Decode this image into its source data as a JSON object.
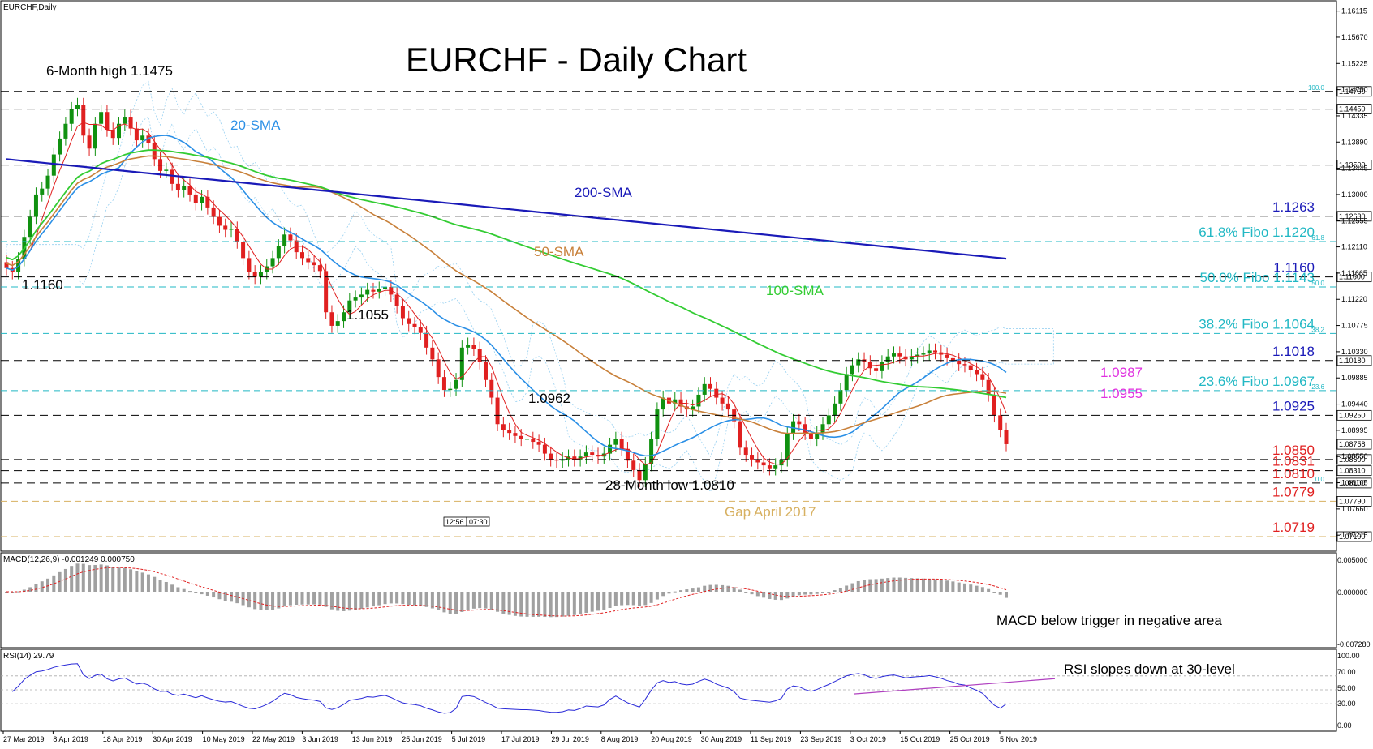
{
  "window": {
    "caption": "EURCHF,Daily"
  },
  "title": "EURCHF - Daily Chart",
  "time_badges": [
    "12:56",
    "07:30"
  ],
  "colors": {
    "up": "#109110",
    "down": "#e02020",
    "sma20": "#2a8fe6",
    "sma50": "#c8803a",
    "sma100": "#33cc33",
    "sma200": "#1a1ab8",
    "fibo": "#22b8c4",
    "gap": "#d7b060",
    "magenta": "#e030e0",
    "red_label": "#e02020",
    "blue_label": "#1a1ab8"
  },
  "chart_data": [
    {
      "type": "line",
      "name": "price",
      "dates": [
        "27 Mar 2019",
        "8 Apr 2019",
        "18 Apr 2019",
        "30 Apr 2019",
        "10 May 2019",
        "22 May 2019",
        "3 Jun 2019",
        "13 Jun 2019",
        "25 Jun 2019",
        "5 Jul 2019",
        "17 Jul 2019",
        "29 Jul 2019",
        "8 Aug 2019",
        "20 Aug 2019",
        "30 Aug 2019",
        "11 Sep 2019",
        "23 Sep 2019",
        "3 Oct 2019",
        "15 Oct 2019",
        "25 Oct 2019",
        "5 Nov 2019"
      ],
      "yticks": [
        "1.16115",
        "1.15670",
        "1.15225",
        "1.14780",
        "1.14335",
        "1.13890",
        "1.13445",
        "1.13000",
        "1.12555",
        "1.12110",
        "1.11665",
        "1.11220",
        "1.10775",
        "1.10330",
        "1.09885",
        "1.09440",
        "1.08995",
        "1.08550",
        "1.08105",
        "1.07660",
        "1.07215"
      ],
      "ylim": [
        1.0697,
        1.1622
      ],
      "closes": [
        1.1175,
        1.1168,
        1.119,
        1.1228,
        1.1262,
        1.13,
        1.131,
        1.1332,
        1.1368,
        1.1395,
        1.142,
        1.1445,
        1.1452,
        1.14,
        1.1378,
        1.142,
        1.144,
        1.141,
        1.1396,
        1.142,
        1.1432,
        1.1412,
        1.1392,
        1.14,
        1.1388,
        1.136,
        1.134,
        1.1342,
        1.1318,
        1.1307,
        1.1315,
        1.13,
        1.1285,
        1.1296,
        1.1278,
        1.1262,
        1.1247,
        1.124,
        1.1242,
        1.122,
        1.1192,
        1.1168,
        1.116,
        1.1168,
        1.1178,
        1.1192,
        1.1212,
        1.1232,
        1.1222,
        1.1202,
        1.1192,
        1.1185,
        1.118,
        1.117,
        1.11,
        1.1077,
        1.1085,
        1.11,
        1.112,
        1.1125,
        1.113,
        1.1138,
        1.1135,
        1.114,
        1.1143,
        1.113,
        1.111,
        1.109,
        1.108,
        1.1075,
        1.1065,
        1.104,
        1.102,
        1.099,
        1.0968,
        1.097,
        1.0985,
        1.104,
        1.1045,
        1.1038,
        1.1015,
        1.0985,
        1.0955,
        1.091,
        1.09,
        1.0895,
        1.089,
        1.0885,
        1.0885,
        1.088,
        1.0875,
        1.086,
        1.085,
        1.0848,
        1.085,
        1.0855,
        1.085,
        1.0855,
        1.0862,
        1.0858,
        1.0855,
        1.086,
        1.0875,
        1.0885,
        1.0868,
        1.0848,
        1.0832,
        1.0815,
        1.0842,
        1.0885,
        1.0935,
        1.0955,
        1.0945,
        1.0952,
        1.094,
        1.0935,
        1.094,
        1.096,
        1.0978,
        1.097,
        1.0955,
        1.0945,
        1.0935,
        1.0915,
        1.087,
        1.0858,
        1.085,
        1.0845,
        1.084,
        1.0835,
        1.084,
        1.085,
        1.0895,
        1.0915,
        1.091,
        1.0895,
        1.0885,
        1.0895,
        1.091,
        1.0925,
        1.0945,
        1.0968,
        1.0995,
        1.101,
        1.102,
        1.1015,
        1.1005,
        1.1,
        1.1015,
        1.1025,
        1.103,
        1.1025,
        1.102,
        1.1025,
        1.1028,
        1.103,
        1.1035,
        1.1032,
        1.1028,
        1.1022,
        1.1018,
        1.1012,
        1.101,
        1.1002,
        1.0995,
        1.0985,
        1.096,
        1.0925,
        1.09,
        1.0876
      ],
      "annotations": [
        "6-Month high 1.1475",
        "1.1160",
        "1.1055",
        "1.0962",
        "28-Month low 1.0810",
        "Gap April 2017",
        "20-SMA",
        "50-SMA",
        "100-SMA",
        "200-SMA"
      ],
      "levels": [
        {
          "value": 1.1475,
          "tag": "1.14750",
          "label": "",
          "kind": "major"
        },
        {
          "value": 1.1445,
          "tag": "1.14450",
          "label": "",
          "kind": "major"
        },
        {
          "value": 1.135,
          "tag": "1.13500",
          "label": "",
          "kind": "major"
        },
        {
          "value": 1.1263,
          "tag": "1.12630",
          "label": "1.1263",
          "kind": "major"
        },
        {
          "value": 1.122,
          "tag": "",
          "label": "61.8% Fibo 1.1220",
          "kind": "fibo",
          "pct": "61.8"
        },
        {
          "value": 1.116,
          "tag": "1.11600",
          "label": "1.1160",
          "kind": "major"
        },
        {
          "value": 1.1143,
          "tag": "",
          "label": "50.0% Fibo 1.1143",
          "kind": "fibo",
          "pct": "50.0"
        },
        {
          "value": 1.1064,
          "tag": "",
          "label": "38.2% Fibo 1.1064",
          "kind": "fibo",
          "pct": "38.2"
        },
        {
          "value": 1.1018,
          "tag": "1.10180",
          "label": "1.1018",
          "kind": "major"
        },
        {
          "value": 1.0967,
          "tag": "",
          "label": "23.6% Fibo 1.0967",
          "kind": "fibo",
          "pct": "23.6"
        },
        {
          "value": 1.0925,
          "tag": "1.09250",
          "label": "1.0925",
          "kind": "major"
        },
        {
          "value": 1.085,
          "tag": "1.08500",
          "label": "1.0850",
          "kind": "major"
        },
        {
          "value": 1.0831,
          "tag": "1.08310",
          "label": "1.0831",
          "kind": "major"
        },
        {
          "value": 1.081,
          "tag": "1.08100",
          "label": "1.0810",
          "kind": "major"
        },
        {
          "value": 1.0779,
          "tag": "1.07790",
          "label": "1.0779",
          "kind": "gap"
        },
        {
          "value": 1.0719,
          "tag": "1.07190",
          "label": "1.0719",
          "kind": "gap"
        }
      ],
      "fibo_top_pct": "100.0",
      "fibo_bottom_pct": "0.0",
      "current_price_tag": "1.08758",
      "extra_labels": [
        "1.0987",
        "1.0955"
      ]
    },
    {
      "type": "bar",
      "name": "MACD",
      "header": "MACD(12,26,9) -0.001249 0.000750",
      "yticks": [
        "0.005000",
        "0.000000",
        "-0.007280"
      ],
      "note": "MACD below trigger in negative area"
    },
    {
      "type": "line",
      "name": "RSI",
      "header": "RSI(14) 29.79",
      "yticks": [
        "100.00",
        "70.00",
        "50.00",
        "30.00",
        "0.00"
      ],
      "ylim": [
        0,
        100
      ],
      "note": "RSI slopes down at 30-level",
      "last": 29.79
    }
  ]
}
